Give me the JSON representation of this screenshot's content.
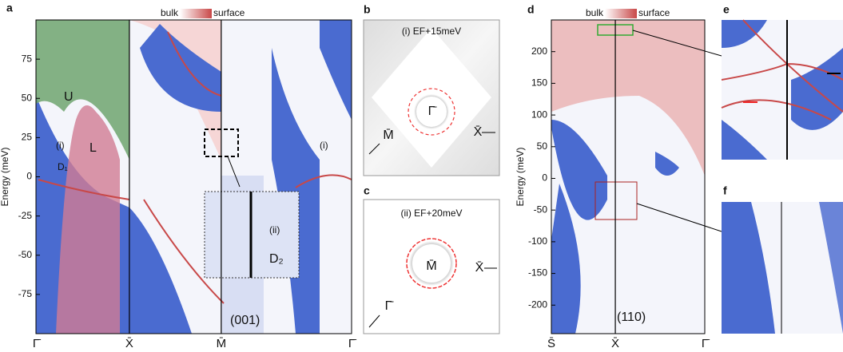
{
  "chart_data": [
    {
      "type": "band",
      "panel": "a",
      "ylabel": "Energy (meV)",
      "categories": [
        "Γ̄",
        "X̄",
        "M̄",
        "Γ̄"
      ],
      "ylim": [
        -100,
        100
      ],
      "yticks": [
        -75,
        -50,
        -25,
        0,
        25,
        50,
        75
      ],
      "colorbar": [
        "bulk",
        "surface"
      ],
      "annotations": [
        "U",
        "L",
        "(i)",
        "(i)",
        "D₁",
        "(ii)",
        "D₂",
        "(001)"
      ]
    },
    {
      "type": "band",
      "panel": "d",
      "ylabel": "Energy (meV)",
      "categories": [
        "S̄",
        "X̄",
        "Γ̄"
      ],
      "ylim": [
        -245,
        250
      ],
      "yticks": [
        -200,
        -150,
        -100,
        -50,
        0,
        50,
        100,
        150,
        200
      ],
      "colorbar": [
        "bulk",
        "surface"
      ],
      "annotations": [
        "(110)"
      ]
    }
  ],
  "panels": {
    "b": {
      "label": "b",
      "title": "(i) EF+15meV",
      "center": "Γ̄",
      "right": "X̄",
      "corner": "M̄"
    },
    "c": {
      "label": "c",
      "title": "(ii) EF+20meV",
      "center": "M̄",
      "right": "X̄",
      "corner": "Γ̄"
    },
    "e": {
      "label": "e"
    },
    "f": {
      "label": "f"
    }
  }
}
